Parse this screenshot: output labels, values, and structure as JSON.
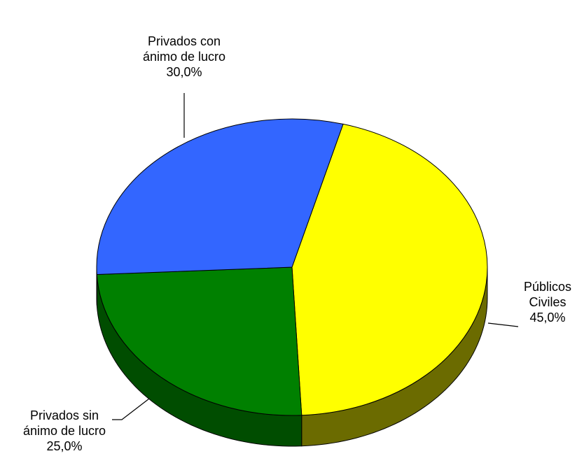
{
  "chart_data": {
    "type": "pie",
    "style": "3d",
    "title": "",
    "slices": [
      {
        "name": "Públicos Civiles",
        "label_lines": [
          "Públicos",
          "Civiles"
        ],
        "value": 45.0,
        "value_label": "45,0%",
        "color": "#ffff00",
        "side_color": "#6b6b00"
      },
      {
        "name": "Privados sin ánimo de lucro",
        "label_lines": [
          "Privados sin",
          "ánimo de lucro"
        ],
        "value": 25.0,
        "value_label": "25,0%",
        "color": "#008000",
        "side_color": "#004d00"
      },
      {
        "name": "Privados con ánimo de lucro",
        "label_lines": [
          "Privados con",
          "ánimo de lucro"
        ],
        "value": 30.0,
        "value_label": "30,0%",
        "color": "#3366ff",
        "side_color": "#1f3f99"
      }
    ]
  }
}
